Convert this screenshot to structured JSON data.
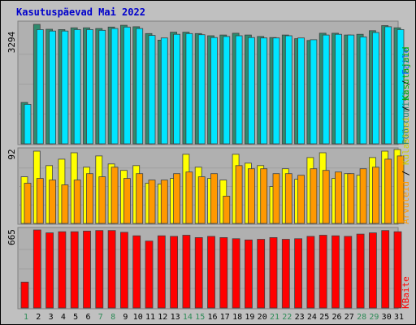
{
  "chart_data": {
    "type": "bar",
    "title": "Kasutuspäevad Mai 2022",
    "categories": [
      "1",
      "2",
      "3",
      "4",
      "5",
      "6",
      "7",
      "8",
      "9",
      "10",
      "11",
      "12",
      "13",
      "14",
      "15",
      "16",
      "17",
      "18",
      "19",
      "20",
      "21",
      "22",
      "23",
      "24",
      "25",
      "26",
      "27",
      "28",
      "29",
      "30",
      "31"
    ],
    "weekend_days": [
      "1",
      "7",
      "8",
      "14",
      "15",
      "21",
      "22",
      "28",
      "29"
    ],
    "panels": [
      {
        "name": "top",
        "ymax_label": "3294",
        "ymax": 3294,
        "legend": [
          "Pöördumisi",
          "Faile"
        ],
        "series": [
          {
            "name": "Pöördumisi",
            "color": "#2e8b6e",
            "values": [
              1140,
              3294,
              3160,
              3150,
              3200,
              3200,
              3180,
              3220,
              3270,
              3230,
              3040,
              2860,
              3080,
              3080,
              3040,
              2980,
              3000,
              3050,
              3000,
              2960,
              2930,
              3000,
              2900,
              2850,
              3050,
              3050,
              3000,
              3020,
              3120,
              3260,
              3200
            ]
          },
          {
            "name": "Faile",
            "color": "#00e5ff",
            "values": [
              1090,
              3150,
              3110,
              3110,
              3150,
              3150,
              3130,
              3180,
              3220,
              3180,
              2990,
              2920,
              3020,
              3040,
              3010,
              2930,
              2960,
              2980,
              2930,
              2920,
              2920,
              2980,
              2920,
              2870,
              3000,
              3020,
              3000,
              2950,
              3070,
              3230,
              3150
            ]
          }
        ]
      },
      {
        "name": "middle",
        "ymax_label": "92",
        "ymax": 92,
        "legend": [
          "Arvuteid",
          "Külastusi",
          "Kasutajaid"
        ],
        "series": [
          {
            "name": "Külastusi",
            "color": "#ffff00",
            "values": [
              58,
              90,
              72,
              80,
              88,
              70,
              84,
              74,
              66,
              72,
              50,
              49,
              56,
              86,
              70,
              56,
              54,
              86,
              75,
              72,
              46,
              68,
              55,
              82,
              88,
              56,
              62,
              60,
              82,
              90,
              92
            ]
          },
          {
            "name": "Arvuteid",
            "color": "#ff9900",
            "values": [
              50,
              56,
              54,
              48,
              54,
              62,
              58,
              70,
              56,
              62,
              54,
              54,
              62,
              64,
              58,
              62,
              34,
              72,
              68,
              68,
              62,
              62,
              60,
              68,
              66,
              64,
              62,
              68,
              70,
              80,
              84
            ]
          }
        ]
      },
      {
        "name": "bottom",
        "ymax_label": "665",
        "ymax": 665,
        "legend": [
          "KBaite"
        ],
        "series": [
          {
            "name": "KBaite",
            "color": "#ff0000",
            "values": [
              220,
              665,
              640,
              650,
              650,
              655,
              660,
              660,
              645,
              615,
              570,
              615,
              610,
              620,
              600,
              610,
              600,
              590,
              580,
              585,
              600,
              585,
              590,
              610,
              620,
              615,
              610,
              630,
              640,
              660,
              650
            ]
          }
        ]
      }
    ]
  }
}
